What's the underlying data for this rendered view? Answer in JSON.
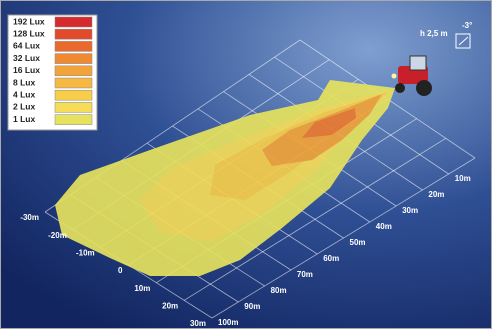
{
  "legend": [
    {
      "label": "192 Lux",
      "color": "#d62a2c"
    },
    {
      "label": "128 Lux",
      "color": "#e24a2c"
    },
    {
      "label": "64 Lux",
      "color": "#ea6a2e"
    },
    {
      "label": "32 Lux",
      "color": "#ef8a32"
    },
    {
      "label": "16 Lux",
      "color": "#f2a33a"
    },
    {
      "label": "8 Lux",
      "color": "#f5b842"
    },
    {
      "label": "4 Lux",
      "color": "#f7cd4a"
    },
    {
      "label": "2 Lux",
      "color": "#f5dd58"
    },
    {
      "label": "1 Lux",
      "color": "#e6e25e"
    }
  ],
  "distance_labels": [
    "10m",
    "20m",
    "30m",
    "40m",
    "50m",
    "60m",
    "70m",
    "80m",
    "90m",
    "100m"
  ],
  "lateral_labels": [
    "-30m",
    "-20m",
    "-10m",
    "0",
    "10m",
    "20m",
    "30m"
  ],
  "mount": {
    "height": "h 2,5 m",
    "angle": "-3°"
  }
}
